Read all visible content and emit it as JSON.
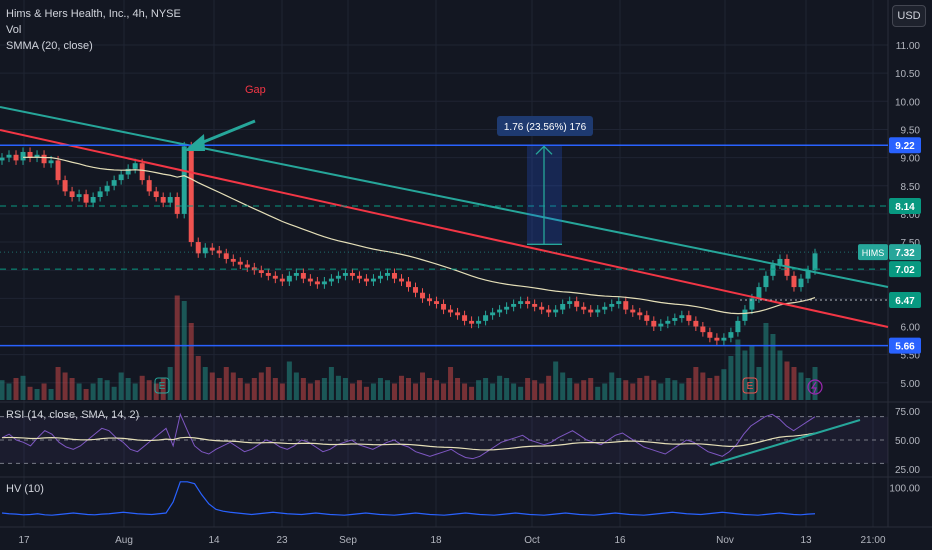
{
  "header": {
    "title": "Hims & Hers Health, Inc., 4h, NYSE",
    "vol_label": "Vol",
    "smma_label": "SMMA (20, close)",
    "currency": "USD"
  },
  "annotations": {
    "gap_label": "Gap",
    "measure_label": "1.76 (23.56%) 176",
    "ticker_tag": "HIMS",
    "earnings_marker": "E"
  },
  "colors": {
    "background": "#131722",
    "up": "#26a69a",
    "down": "#ef5350",
    "teal_trendline": "#26a69a",
    "red_trendline": "#f23645",
    "blue_level": "#2962ff",
    "green_dashed": "#089981",
    "smma": "#e5dfb8",
    "rsi": "#7e57c2",
    "rsi_ma": "#e5dfb8",
    "hv": "#2962ff",
    "gap_label": "#f23645"
  },
  "chart_data": [
    {
      "type": "candlestick",
      "title": "Hims & Hers Health, Inc., 4h, NYSE",
      "x_tick_labels": [
        "17",
        "Aug",
        "14",
        "23",
        "Sep",
        "18",
        "Oct",
        "16",
        "Nov",
        "13",
        "21:00"
      ],
      "y_tick_labels": [
        "11.00",
        "10.50",
        "10.00",
        "9.50",
        "9.00",
        "8.50",
        "8.00",
        "7.50",
        "7.00",
        "6.50",
        "6.00",
        "5.50",
        "5.00"
      ],
      "ylim": [
        4.75,
        11.4
      ],
      "grid": true,
      "price_levels": [
        {
          "label": "9.22",
          "value": 9.22,
          "color": "#2962ff"
        },
        {
          "label": "8.14",
          "value": 8.14,
          "color": "#089981"
        },
        {
          "label": "7.32",
          "value": 7.32,
          "color": "#26a69a"
        },
        {
          "label": "7.02",
          "value": 7.02,
          "color": "#089981"
        },
        {
          "label": "6.47",
          "value": 6.47,
          "color": "#089981"
        },
        {
          "label": "5.66",
          "value": 5.66,
          "color": "#2962ff"
        }
      ],
      "closes": [
        9.0,
        9.05,
        8.95,
        9.1,
        9.0,
        9.05,
        8.9,
        8.95,
        8.6,
        8.4,
        8.3,
        8.35,
        8.2,
        8.3,
        8.4,
        8.5,
        8.6,
        8.7,
        8.8,
        8.9,
        8.6,
        8.4,
        8.3,
        8.2,
        8.3,
        8.0,
        9.2,
        7.5,
        7.3,
        7.4,
        7.35,
        7.3,
        7.2,
        7.15,
        7.1,
        7.05,
        7.0,
        6.95,
        6.9,
        6.85,
        6.8,
        6.9,
        6.95,
        6.85,
        6.8,
        6.75,
        6.8,
        6.85,
        6.9,
        6.95,
        6.9,
        6.85,
        6.8,
        6.85,
        6.9,
        6.95,
        6.85,
        6.8,
        6.7,
        6.6,
        6.5,
        6.45,
        6.4,
        6.3,
        6.25,
        6.2,
        6.1,
        6.05,
        6.1,
        6.2,
        6.25,
        6.3,
        6.35,
        6.4,
        6.45,
        6.4,
        6.35,
        6.3,
        6.25,
        6.3,
        6.4,
        6.45,
        6.35,
        6.3,
        6.25,
        6.3,
        6.35,
        6.4,
        6.45,
        6.3,
        6.25,
        6.2,
        6.1,
        6.0,
        6.05,
        6.1,
        6.15,
        6.2,
        6.1,
        6.0,
        5.9,
        5.8,
        5.75,
        5.8,
        5.9,
        6.1,
        6.3,
        6.5,
        6.7,
        6.9,
        7.1,
        7.2,
        6.9,
        6.7,
        6.85,
        7.0,
        7.3
      ],
      "volumes": [
        0.18,
        0.15,
        0.2,
        0.22,
        0.12,
        0.1,
        0.15,
        0.1,
        0.3,
        0.25,
        0.2,
        0.15,
        0.1,
        0.15,
        0.2,
        0.18,
        0.12,
        0.25,
        0.2,
        0.15,
        0.22,
        0.18,
        0.15,
        0.2,
        0.3,
        0.95,
        0.9,
        0.7,
        0.4,
        0.3,
        0.25,
        0.2,
        0.3,
        0.25,
        0.2,
        0.15,
        0.2,
        0.25,
        0.3,
        0.2,
        0.15,
        0.35,
        0.25,
        0.2,
        0.15,
        0.18,
        0.2,
        0.3,
        0.22,
        0.2,
        0.15,
        0.18,
        0.12,
        0.15,
        0.2,
        0.18,
        0.15,
        0.22,
        0.2,
        0.15,
        0.25,
        0.2,
        0.18,
        0.15,
        0.3,
        0.2,
        0.15,
        0.12,
        0.18,
        0.2,
        0.15,
        0.22,
        0.2,
        0.15,
        0.12,
        0.2,
        0.18,
        0.15,
        0.22,
        0.35,
        0.25,
        0.2,
        0.15,
        0.18,
        0.2,
        0.12,
        0.15,
        0.25,
        0.2,
        0.18,
        0.15,
        0.2,
        0.22,
        0.18,
        0.15,
        0.2,
        0.18,
        0.15,
        0.2,
        0.3,
        0.25,
        0.2,
        0.22,
        0.28,
        0.4,
        0.55,
        0.45,
        0.5,
        0.3,
        0.7,
        0.6,
        0.45,
        0.35,
        0.3,
        0.25,
        0.2,
        0.3
      ]
    },
    {
      "type": "line",
      "title": "RSI (14, close, SMA, 14, 2)",
      "y_tick_labels": [
        "75.00",
        "50.00",
        "25.00"
      ],
      "ylim": [
        20,
        80
      ],
      "bands": [
        70,
        50,
        30
      ],
      "series": [
        {
          "name": "RSI",
          "values": [
            52,
            55,
            50,
            48,
            45,
            52,
            58,
            55,
            48,
            44,
            42,
            45,
            50,
            55,
            60,
            58,
            52,
            48,
            42,
            40,
            45,
            50,
            55,
            60,
            45,
            72,
            58,
            45,
            40,
            38,
            42,
            45,
            48,
            44,
            40,
            42,
            46,
            50,
            48,
            44,
            42,
            45,
            50,
            48,
            44,
            40,
            42,
            46,
            48,
            50,
            46,
            44,
            42,
            45,
            48,
            50,
            46,
            44,
            40,
            38,
            36,
            38,
            40,
            42,
            38,
            35,
            34,
            36,
            40,
            44,
            48,
            50,
            52,
            54,
            50,
            48,
            46,
            48,
            52,
            55,
            58,
            54,
            50,
            48,
            46,
            50,
            54,
            56,
            52,
            48,
            44,
            42,
            40,
            38,
            42,
            46,
            50,
            48,
            44,
            40,
            38,
            36,
            40,
            46,
            55,
            62,
            66,
            70,
            72,
            68,
            62,
            58,
            62,
            66,
            70
          ]
        }
      ]
    },
    {
      "type": "line",
      "title": "HV (10)",
      "y_tick_labels": [
        "100.00"
      ],
      "ylim": [
        0,
        120
      ],
      "series": [
        {
          "name": "HV",
          "values": [
            30,
            28,
            27,
            25,
            26,
            28,
            25,
            24,
            26,
            28,
            30,
            28,
            26,
            25,
            27,
            28,
            30,
            32,
            30,
            28,
            27,
            26,
            28,
            30,
            60,
            115,
            115,
            110,
            80,
            55,
            40,
            35,
            32,
            30,
            28,
            26,
            28,
            30,
            32,
            30,
            28,
            27,
            26,
            28,
            30,
            28,
            26,
            25,
            24,
            26,
            28,
            30,
            28,
            26,
            25,
            24,
            26,
            28,
            30,
            28,
            26,
            25,
            24,
            26,
            28,
            30,
            28,
            26,
            25,
            24,
            26,
            28,
            30,
            28,
            26,
            25,
            24,
            26,
            28,
            30,
            28,
            26,
            25,
            24,
            26,
            28,
            30,
            28,
            26,
            25,
            24,
            26,
            28,
            30,
            32,
            30,
            28,
            27,
            26,
            28,
            30,
            32,
            30,
            28,
            26,
            25,
            24,
            26,
            28,
            30,
            28,
            26,
            25,
            27,
            28
          ]
        }
      ]
    }
  ]
}
